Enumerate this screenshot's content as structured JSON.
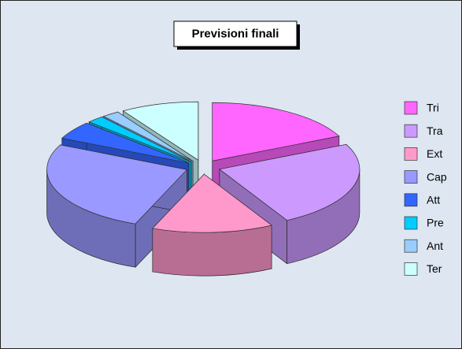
{
  "chart_data": {
    "type": "pie",
    "title": "Previsioni finali",
    "categories": [
      "Tri",
      "Tra",
      "Ext",
      "Cap",
      "Att",
      "Pre",
      "Ant",
      "Ter"
    ],
    "values": [
      18,
      24,
      14,
      26,
      5,
      2,
      2,
      9
    ],
    "colors": [
      "#ff66ff",
      "#cc99ff",
      "#ff99cc",
      "#9999ff",
      "#3366ff",
      "#00ccff",
      "#99ccff",
      "#ccffff"
    ],
    "legend": "right"
  }
}
